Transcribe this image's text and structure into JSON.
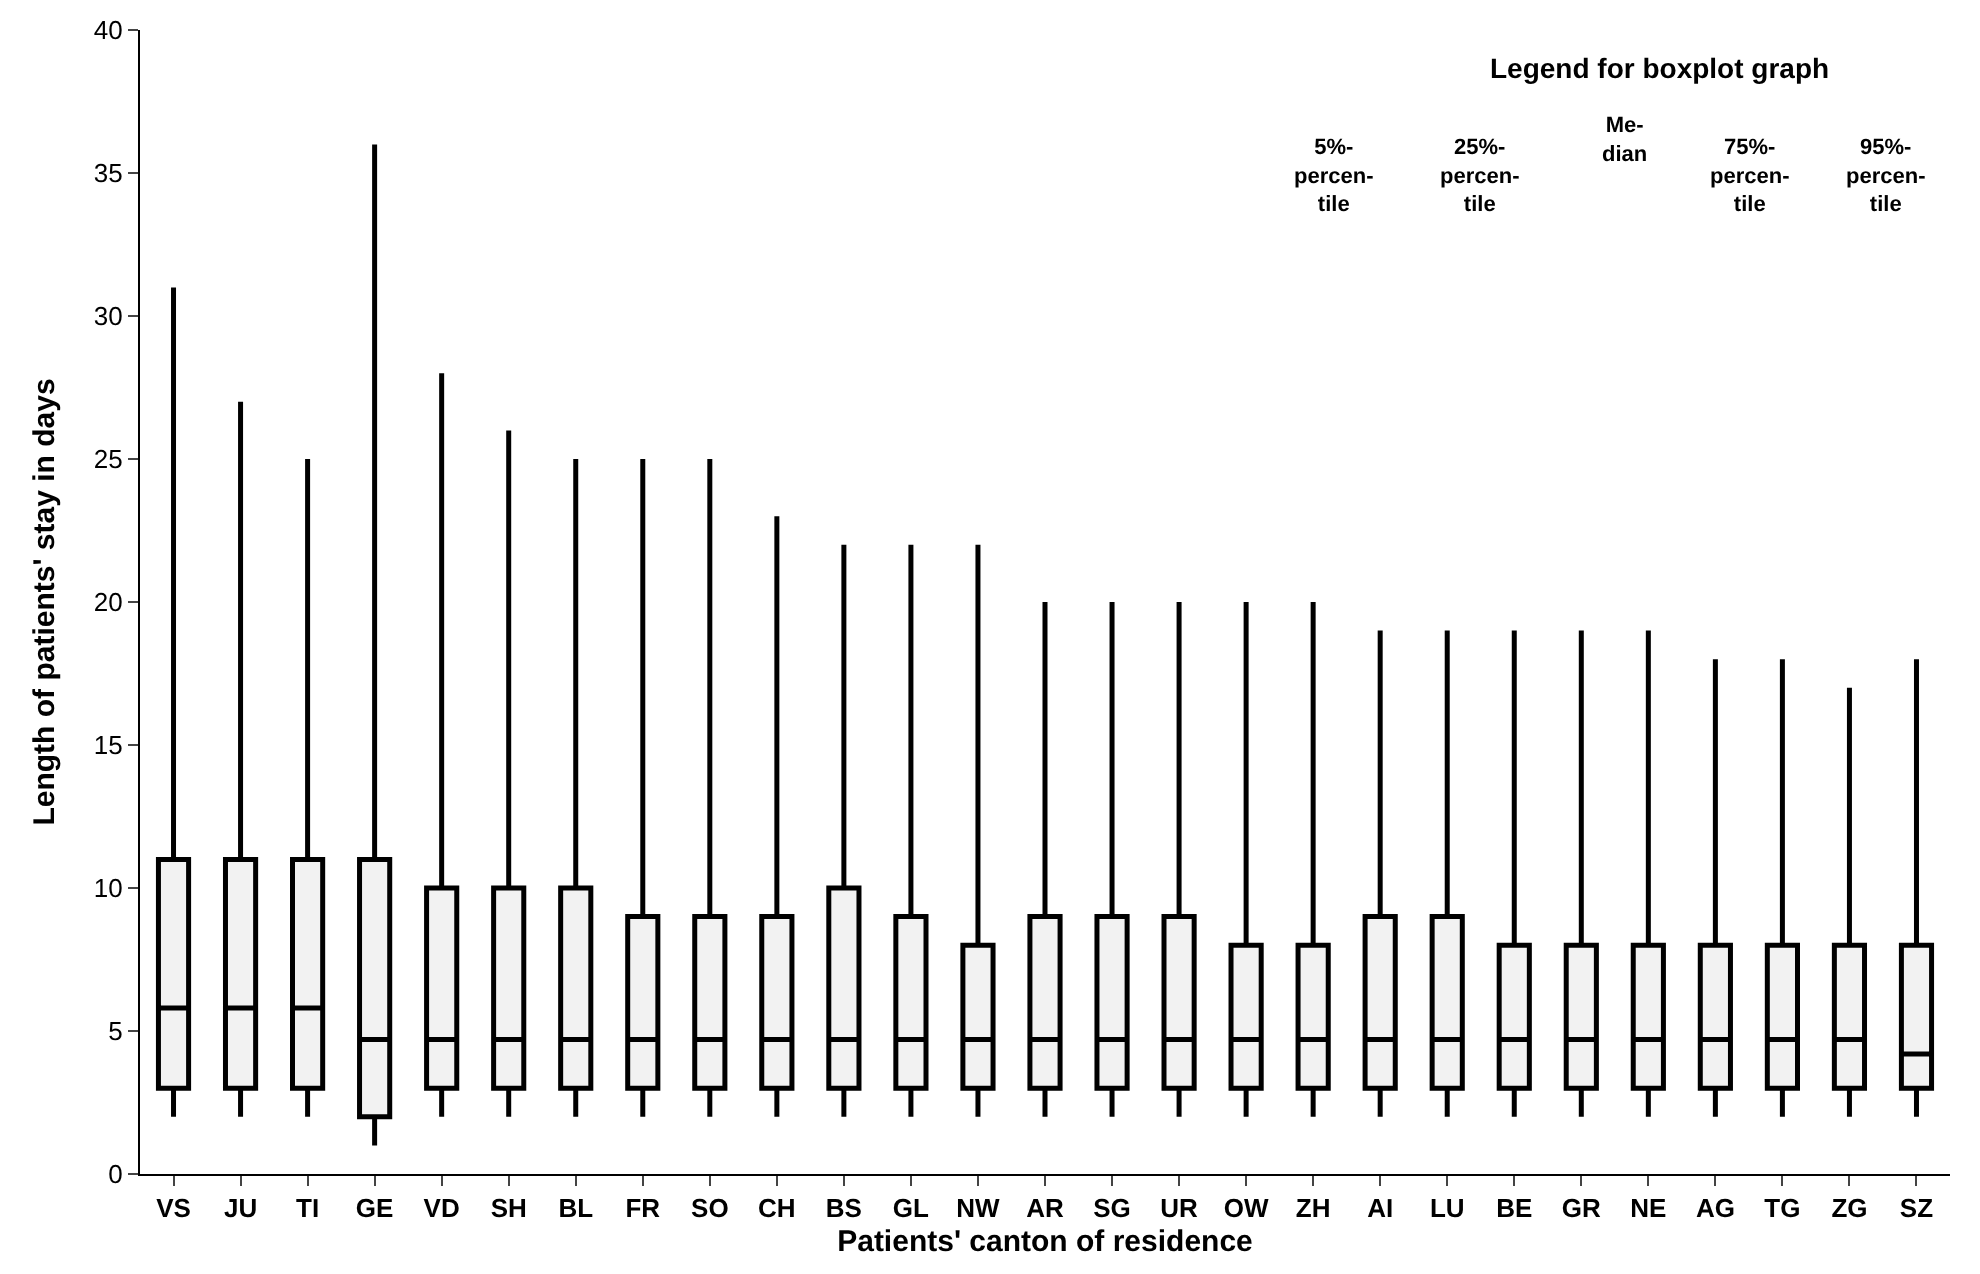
{
  "chart_data": {
    "type": "box",
    "xlabel": "Patients' canton of residence",
    "ylabel": "Length of patients' stay in days",
    "categories": [
      "VS",
      "JU",
      "TI",
      "GE",
      "VD",
      "SH",
      "BL",
      "FR",
      "SO",
      "CH",
      "BS",
      "GL",
      "NW",
      "AR",
      "SG",
      "UR",
      "OW",
      "ZH",
      "AI",
      "LU",
      "BE",
      "GR",
      "NE",
      "AG",
      "TG",
      "ZG",
      "SZ"
    ],
    "boxes": [
      {
        "low": 2,
        "q1": 3,
        "median": 5.8,
        "q3": 11,
        "high": 31
      },
      {
        "low": 2,
        "q1": 3,
        "median": 5.8,
        "q3": 11,
        "high": 27
      },
      {
        "low": 2,
        "q1": 3,
        "median": 5.8,
        "q3": 11,
        "high": 25
      },
      {
        "low": 1,
        "q1": 2,
        "median": 4.7,
        "q3": 11,
        "high": 36
      },
      {
        "low": 2,
        "q1": 3,
        "median": 4.7,
        "q3": 10,
        "high": 28
      },
      {
        "low": 2,
        "q1": 3,
        "median": 4.7,
        "q3": 10,
        "high": 26
      },
      {
        "low": 2,
        "q1": 3,
        "median": 4.7,
        "q3": 10,
        "high": 25
      },
      {
        "low": 2,
        "q1": 3,
        "median": 4.7,
        "q3": 9,
        "high": 25
      },
      {
        "low": 2,
        "q1": 3,
        "median": 4.7,
        "q3": 9,
        "high": 25
      },
      {
        "low": 2,
        "q1": 3,
        "median": 4.7,
        "q3": 9,
        "high": 23
      },
      {
        "low": 2,
        "q1": 3,
        "median": 4.7,
        "q3": 10,
        "high": 22
      },
      {
        "low": 2,
        "q1": 3,
        "median": 4.7,
        "q3": 9,
        "high": 22
      },
      {
        "low": 2,
        "q1": 3,
        "median": 4.7,
        "q3": 8,
        "high": 22
      },
      {
        "low": 2,
        "q1": 3,
        "median": 4.7,
        "q3": 9,
        "high": 20
      },
      {
        "low": 2,
        "q1": 3,
        "median": 4.7,
        "q3": 9,
        "high": 20
      },
      {
        "low": 2,
        "q1": 3,
        "median": 4.7,
        "q3": 9,
        "high": 20
      },
      {
        "low": 2,
        "q1": 3,
        "median": 4.7,
        "q3": 8,
        "high": 20
      },
      {
        "low": 2,
        "q1": 3,
        "median": 4.7,
        "q3": 8,
        "high": 20
      },
      {
        "low": 2,
        "q1": 3,
        "median": 4.7,
        "q3": 9,
        "high": 19
      },
      {
        "low": 2,
        "q1": 3,
        "median": 4.7,
        "q3": 9,
        "high": 19
      },
      {
        "low": 2,
        "q1": 3,
        "median": 4.7,
        "q3": 8,
        "high": 19
      },
      {
        "low": 2,
        "q1": 3,
        "median": 4.7,
        "q3": 8,
        "high": 19
      },
      {
        "low": 2,
        "q1": 3,
        "median": 4.7,
        "q3": 8,
        "high": 19
      },
      {
        "low": 2,
        "q1": 3,
        "median": 4.7,
        "q3": 8,
        "high": 18
      },
      {
        "low": 2,
        "q1": 3,
        "median": 4.7,
        "q3": 8,
        "high": 18
      },
      {
        "low": 2,
        "q1": 3,
        "median": 4.7,
        "q3": 8,
        "high": 17
      },
      {
        "low": 2,
        "q1": 3,
        "median": 4.2,
        "q3": 8,
        "high": 18
      }
    ],
    "color": "#f2f2f2",
    "ylim": [
      0,
      40
    ],
    "yticks": [
      0,
      5,
      10,
      15,
      20,
      25,
      30,
      35,
      40
    ],
    "annotations": [
      "Legend for boxplot graph",
      "5%-\npercen-\ntile",
      "25%-\npercen-\ntile",
      "Me-\ndian",
      "75%-\npercen-\ntile",
      "95%-\npercen-\ntile"
    ]
  }
}
